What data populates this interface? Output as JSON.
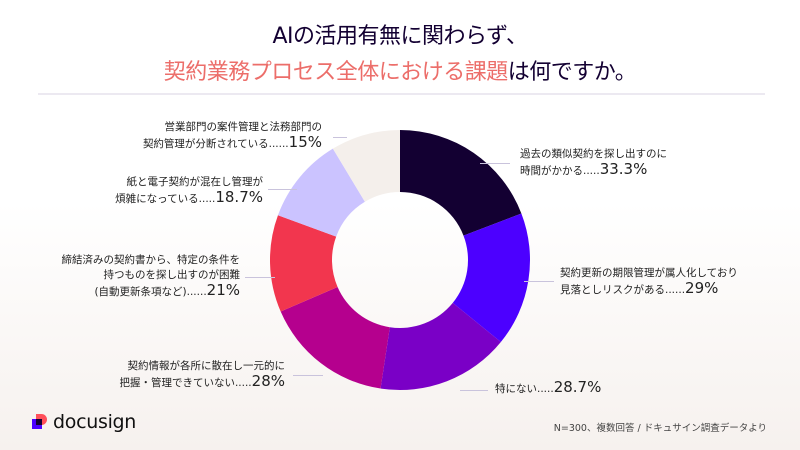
{
  "title": {
    "line1": "AIの活用有無に関わらず、",
    "line2_highlight": "契約業務プロセス全体における課題",
    "line2_rest": "は何ですか。",
    "highlight_color": "#ec6e6a"
  },
  "chart_data": {
    "type": "pie",
    "donut": true,
    "start": "top",
    "direction": "clockwise",
    "slices": [
      {
        "label_lines": [
          "過去の類似契約を探し出すのに",
          "時間がかかる....."
        ],
        "value": 33.3,
        "value_text": "33.3%",
        "color": "#130032"
      },
      {
        "label_lines": [
          "契約更新の期限管理が属人化しており",
          "見落としリスクがある......"
        ],
        "value": 29,
        "value_text": "29%",
        "color": "#4c00ff"
      },
      {
        "label_lines": [
          "特にない....."
        ],
        "value": 28.7,
        "value_text": "28.7%",
        "color": "#7a00c6"
      },
      {
        "label_lines": [
          "契約情報が各所に散在し一元的に",
          "把握・管理できていない....."
        ],
        "value": 28,
        "value_text": "28%",
        "color": "#b5008e"
      },
      {
        "label_lines": [
          "締結済みの契約書から、特定の条件を",
          "持つものを探し出すのが困難",
          "(自動更新条項など)......"
        ],
        "value": 21,
        "value_text": "21%",
        "color": "#f2364e"
      },
      {
        "label_lines": [
          "紙と電子契約が混在し管理が",
          "煩雑になっている....."
        ],
        "value": 18.7,
        "value_text": "18.7%",
        "color": "#cbc3ff"
      },
      {
        "label_lines": [
          "営業部門の案件管理と法務部門の",
          "契約管理が分断されている......"
        ],
        "value": 15,
        "value_text": "15%",
        "color": "#f4efeb"
      }
    ]
  },
  "footnote": "N=300、複数回答 / ドキュサイン調査データより",
  "logo": {
    "text": "docusign",
    "icon": "docusign-logo-mark"
  }
}
